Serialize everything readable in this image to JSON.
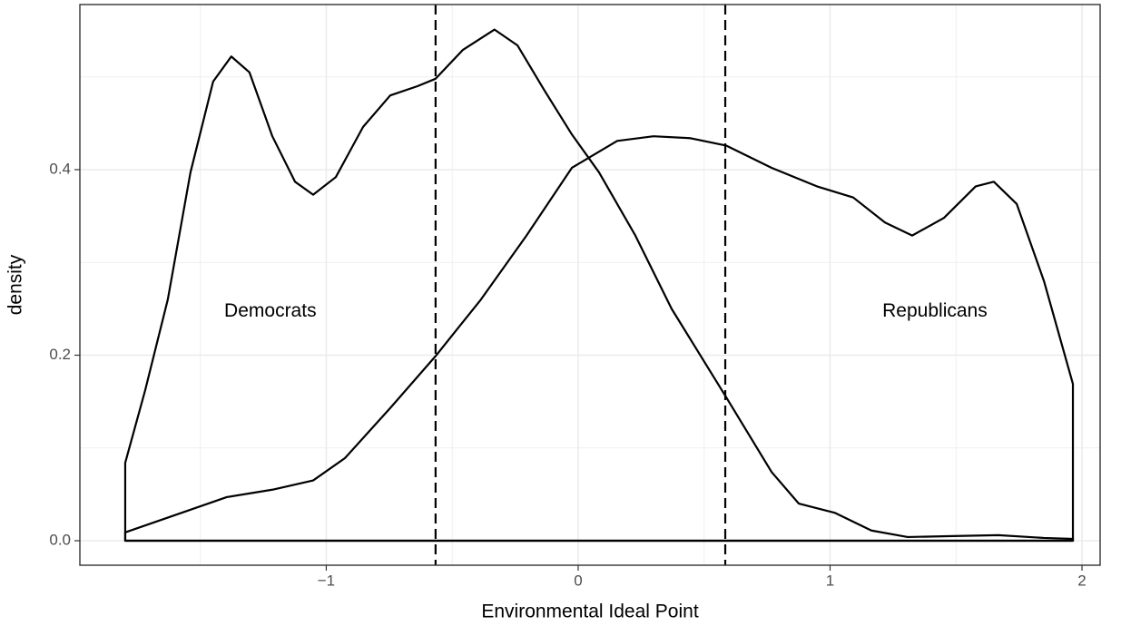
{
  "chart_data": {
    "type": "density",
    "x_label": "Environmental Ideal Point",
    "y_label": "density",
    "xlim": [
      -1.978,
      2.072
    ],
    "ylim": [
      -0.0264,
      0.578
    ],
    "xticks": [
      {
        "value": -1,
        "label": "−1"
      },
      0,
      1,
      2
    ],
    "yticks": [
      {
        "value": 0,
        "label": "0.0"
      },
      0.2,
      0.4
    ],
    "x_minor_ticks": [
      -1.5,
      -0.5,
      0.5,
      1.5
    ],
    "y_minor_ticks": [
      0.1,
      0.3,
      0.5
    ],
    "grid": true,
    "series": [
      {
        "color": "#000000",
        "x": [
          -1.798,
          -1.719,
          -1.629,
          -1.539,
          -1.449,
          -1.377,
          -1.305,
          -1.214,
          -1.124,
          -1.052,
          -0.962,
          -0.854,
          -0.746,
          -0.638,
          -0.566,
          -0.458,
          -0.332,
          -0.241,
          -0.133,
          -0.025,
          0.083,
          0.227,
          0.371,
          0.587,
          0.768,
          0.876,
          1.02,
          1.164,
          1.308,
          1.488,
          1.668,
          1.849,
          1.964
        ],
        "values": [
          0.084,
          0.162,
          0.26,
          0.397,
          0.495,
          0.522,
          0.505,
          0.436,
          0.387,
          0.373,
          0.392,
          0.446,
          0.48,
          0.49,
          0.498,
          0.529,
          0.551,
          0.534,
          0.485,
          0.438,
          0.397,
          0.329,
          0.25,
          0.155,
          0.074,
          0.04,
          0.03,
          0.011,
          0.004,
          0.005,
          0.006,
          0.003,
          0.002
        ]
      },
      {
        "color": "#000000",
        "x": [
          -1.798,
          -1.575,
          -1.395,
          -1.214,
          -1.052,
          -0.926,
          -0.746,
          -0.566,
          -0.386,
          -0.205,
          -0.025,
          0.155,
          0.299,
          0.443,
          0.587,
          0.768,
          0.948,
          1.092,
          1.218,
          1.326,
          1.452,
          1.578,
          1.65,
          1.741,
          1.849,
          1.964
        ],
        "values": [
          0.009,
          0.03,
          0.047,
          0.055,
          0.065,
          0.089,
          0.143,
          0.199,
          0.26,
          0.329,
          0.402,
          0.431,
          0.436,
          0.434,
          0.426,
          0.402,
          0.382,
          0.37,
          0.343,
          0.329,
          0.348,
          0.382,
          0.387,
          0.363,
          0.28,
          0.169
        ]
      }
    ],
    "vlines": [
      -0.566,
      0.584
    ],
    "annotations": [
      {
        "text": "Democrats",
        "x": -1.222,
        "y": 0.247
      },
      {
        "text": "Republicans",
        "x": 1.416,
        "y": 0.247
      }
    ]
  }
}
